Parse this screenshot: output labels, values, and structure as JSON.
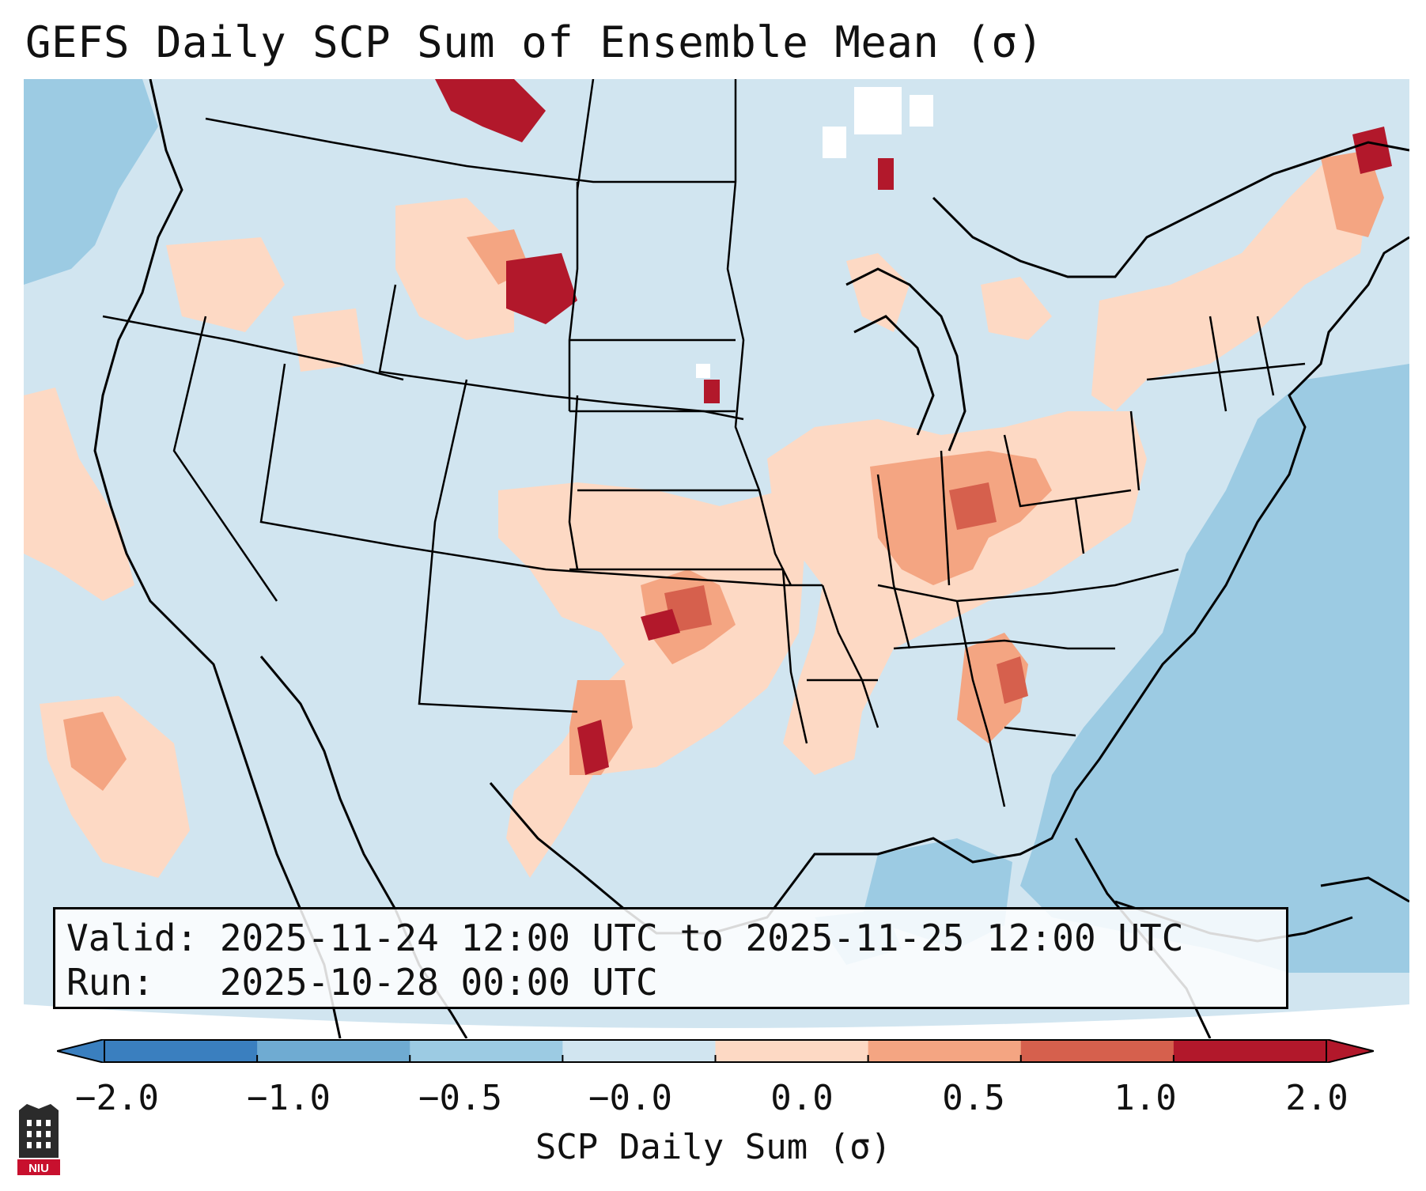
{
  "title": "GEFS Daily SCP Sum of Ensemble Mean (σ)",
  "info": {
    "valid_line": "Valid: 2025-11-24 12:00 UTC to 2025-11-25 12:00 UTC",
    "run_line": "Run:   2025-10-28 00:00 UTC"
  },
  "colorbar": {
    "label": "SCP Daily Sum (σ)",
    "ticks": [
      "−2.0",
      "−1.0",
      "−0.5",
      "−0.0",
      "0.0",
      "0.5",
      "1.0",
      "2.0"
    ],
    "colors": [
      "#3a7fbf",
      "#6fabd2",
      "#9ccbe3",
      "#d1e5f0",
      "#fdd9c4",
      "#f4a582",
      "#d6604d",
      "#b2182b"
    ]
  },
  "map": {
    "ocean_color": "#9ccbe3",
    "land_anomaly_color": "#d1e5f0",
    "region": "Continental United States"
  },
  "logo_text": "NIU"
}
